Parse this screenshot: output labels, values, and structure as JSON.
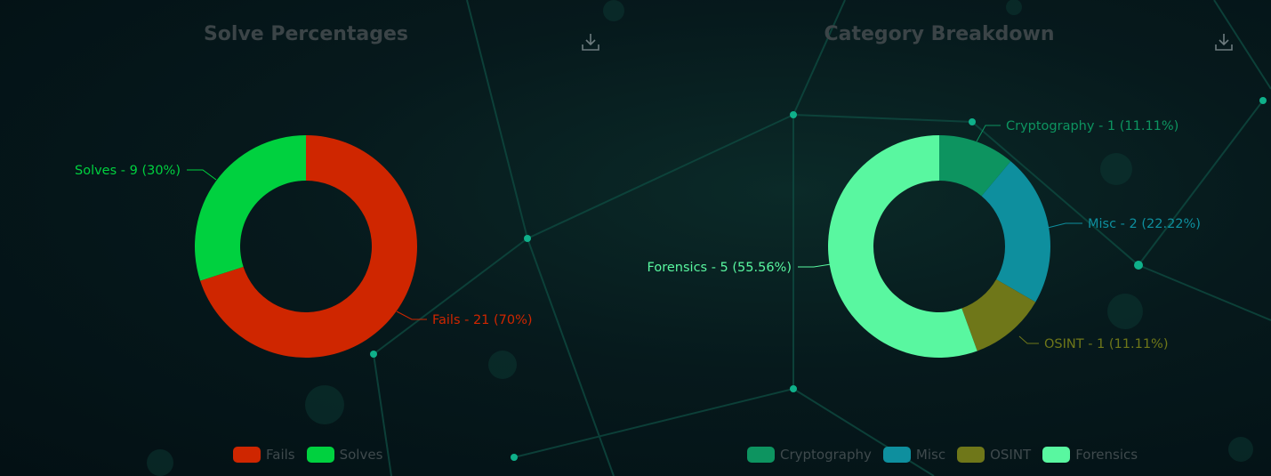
{
  "charts": [
    {
      "title": "Solve Percentages",
      "download_icon": "download-icon",
      "chart_data": {
        "type": "pie",
        "donut": true,
        "categories": [
          "Fails",
          "Solves"
        ],
        "values": [
          21,
          9
        ],
        "percentages": [
          "70%",
          "30%"
        ],
        "colors": [
          "#cf2600",
          "#00d13f"
        ],
        "slice_labels": [
          "Fails - 21 (70%)",
          "Solves - 9 (30%)"
        ],
        "legend": "bottom",
        "title": "Solve Percentages"
      }
    },
    {
      "title": "Category Breakdown",
      "download_icon": "download-icon",
      "chart_data": {
        "type": "pie",
        "donut": true,
        "categories": [
          "Cryptography",
          "Misc",
          "OSINT",
          "Forensics"
        ],
        "values": [
          1,
          2,
          1,
          5
        ],
        "percentages": [
          "11.11%",
          "22.22%",
          "11.11%",
          "55.56%"
        ],
        "colors": [
          "#0d9460",
          "#0e8f9e",
          "#6f7719",
          "#59f7a0"
        ],
        "slice_labels": [
          "Cryptography - 1 (11.11%)",
          "Misc - 2 (22.22%)",
          "OSINT - 1 (11.11%)",
          "Forensics - 5 (55.56%)"
        ],
        "legend": "bottom",
        "title": "Category Breakdown"
      }
    }
  ]
}
